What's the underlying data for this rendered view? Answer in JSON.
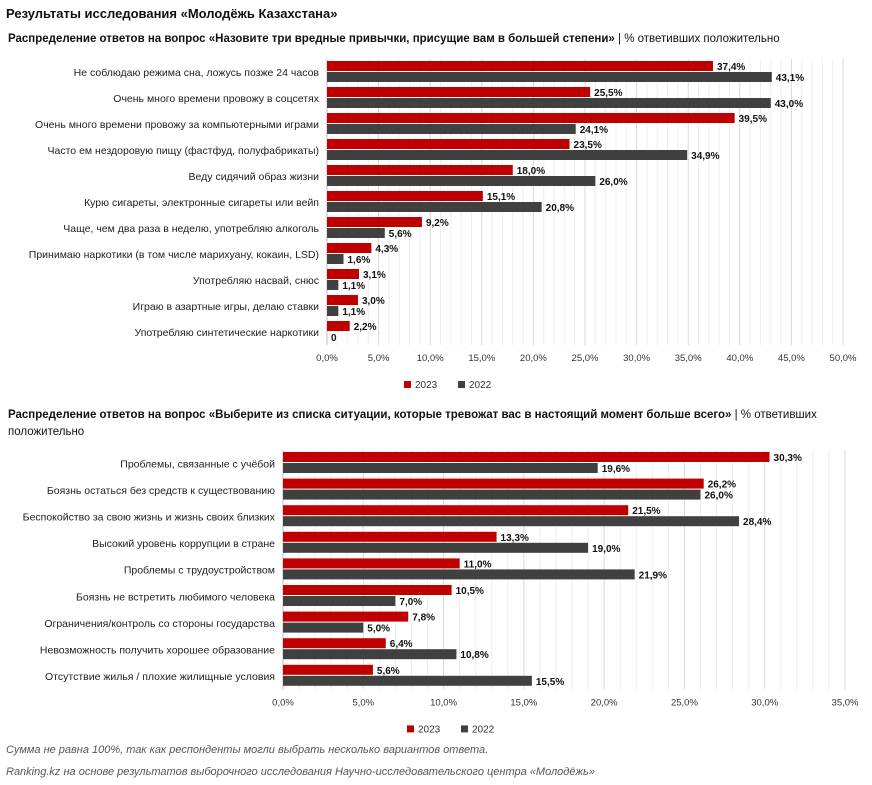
{
  "main_title": "Результаты исследования «Молодёжь Казахстана»",
  "colors": {
    "y2023": "#c00000",
    "y2022": "#404040"
  },
  "chart_data": [
    {
      "type": "bar",
      "orientation": "horizontal",
      "title": "Распределение ответов на вопрос «Назовите три вредные привычки, присущие вам в большей степени»",
      "subtitle": "| % ответивших положительно",
      "categories": [
        "Не соблюдаю режима сна, ложусь позже 24 часов",
        "Очень много времени провожу в соцсетях",
        "Очень много времени провожу за компьютерными играми",
        "Часто ем нездоровую пищу (фастфуд, полуфабрикаты)",
        "Веду сидячий образ жизни",
        "Курю сигареты, электронные сигареты или вейп",
        "Чаще, чем два раза в неделю, употребляю алкоголь",
        "Принимаю наркотики (в том числе марихуану, кокаин, LSD)",
        "Употребляю насвай, снюс",
        "Играю в азартные игры, делаю ставки",
        "Употребляю синтетические наркотики"
      ],
      "series": [
        {
          "name": "2023",
          "values": [
            37.4,
            25.5,
            39.5,
            23.5,
            18.0,
            15.1,
            9.2,
            4.3,
            3.1,
            3.0,
            2.2
          ],
          "labels": [
            "37,4%",
            "25,5%",
            "39,5%",
            "23,5%",
            "18,0%",
            "15,1%",
            "9,2%",
            "4,3%",
            "3,1%",
            "3,0%",
            "2,2%"
          ]
        },
        {
          "name": "2022",
          "values": [
            43.1,
            43.0,
            24.1,
            34.9,
            26.0,
            20.8,
            5.6,
            1.6,
            1.1,
            1.1,
            0
          ],
          "labels": [
            "43,1%",
            "43,0%",
            "24,1%",
            "34,9%",
            "26,0%",
            "20,8%",
            "5,6%",
            "1,6%",
            "1,1%",
            "1,1%",
            "0"
          ]
        }
      ],
      "xlim": [
        0,
        50
      ],
      "xticks": [
        "0,0%",
        "5,0%",
        "10,0%",
        "15,0%",
        "20,0%",
        "25,0%",
        "30,0%",
        "35,0%",
        "40,0%",
        "45,0%",
        "50,0%"
      ],
      "grid": true,
      "legend": "bottom"
    },
    {
      "type": "bar",
      "orientation": "horizontal",
      "title": "Распределение ответов на вопрос «Выберите из списка ситуации, которые тревожат вас в настоящий момент больше всего»",
      "subtitle": "| % ответивших положительно",
      "categories": [
        "Проблемы, связанные с учёбой",
        "Боязнь остаться без средств к существованию",
        "Беспокойство за свою жизнь и жизнь своих близких",
        "Высокий уровень коррупции в стране",
        "Проблемы с трудоустройством",
        "Боязнь не встретить любимого человека",
        "Ограничения/контроль со стороны государства",
        "Невозможность получить хорошее образование",
        "Отсутствие жилья / плохие жилищные условия"
      ],
      "series": [
        {
          "name": "2023",
          "values": [
            30.3,
            26.2,
            21.5,
            13.3,
            11.0,
            10.5,
            7.8,
            6.4,
            5.6
          ],
          "labels": [
            "30,3%",
            "26,2%",
            "21,5%",
            "13,3%",
            "11,0%",
            "10,5%",
            "7,8%",
            "6,4%",
            "5,6%"
          ]
        },
        {
          "name": "2022",
          "values": [
            19.6,
            26.0,
            28.4,
            19.0,
            21.9,
            7.0,
            5.0,
            10.8,
            15.5
          ],
          "labels": [
            "19,6%",
            "26,0%",
            "28,4%",
            "19,0%",
            "21,9%",
            "7,0%",
            "5,0%",
            "10,8%",
            "15,5%"
          ]
        }
      ],
      "xlim": [
        0,
        35
      ],
      "xticks": [
        "0,0%",
        "5,0%",
        "10,0%",
        "15,0%",
        "20,0%",
        "25,0%",
        "30,0%",
        "35,0%"
      ],
      "grid": true,
      "legend": "bottom"
    }
  ],
  "notes": {
    "sum_note": "Сумма не равна 100%, так как респонденты могли выбрать несколько вариантов ответа.",
    "source": "Ranking.kz на основе результатов выборочного исследования Научно-исследовательского центра «Молодёжь»"
  }
}
